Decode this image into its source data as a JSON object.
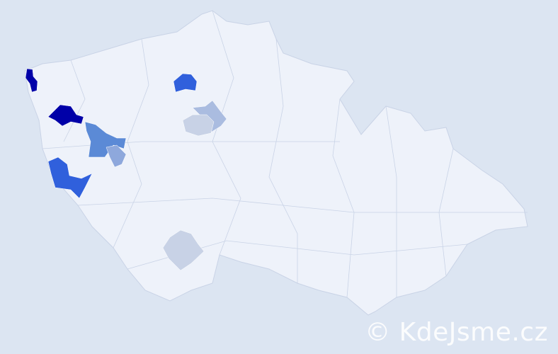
{
  "watermark": "© KdeJsme.cz",
  "colors": {
    "background": "#dce5f2",
    "country_fill": "#eef2fa",
    "border": "#c9d3e6",
    "level_highest": "#0000a8",
    "level_high": "#3060dc",
    "level_mid": "#5b8ad6",
    "level_low": "#8ea8dc",
    "level_lower": "#aabce0",
    "level_lowest": "#c8d2e6"
  },
  "highlighted_districts": [
    {
      "level": "level_highest"
    },
    {
      "level": "level_highest"
    },
    {
      "level": "level_high"
    },
    {
      "level": "level_mid"
    },
    {
      "level": "level_low"
    },
    {
      "level": "level_lower"
    },
    {
      "level": "level_lowest"
    },
    {
      "level": "level_high"
    },
    {
      "level": "level_lowest"
    }
  ]
}
